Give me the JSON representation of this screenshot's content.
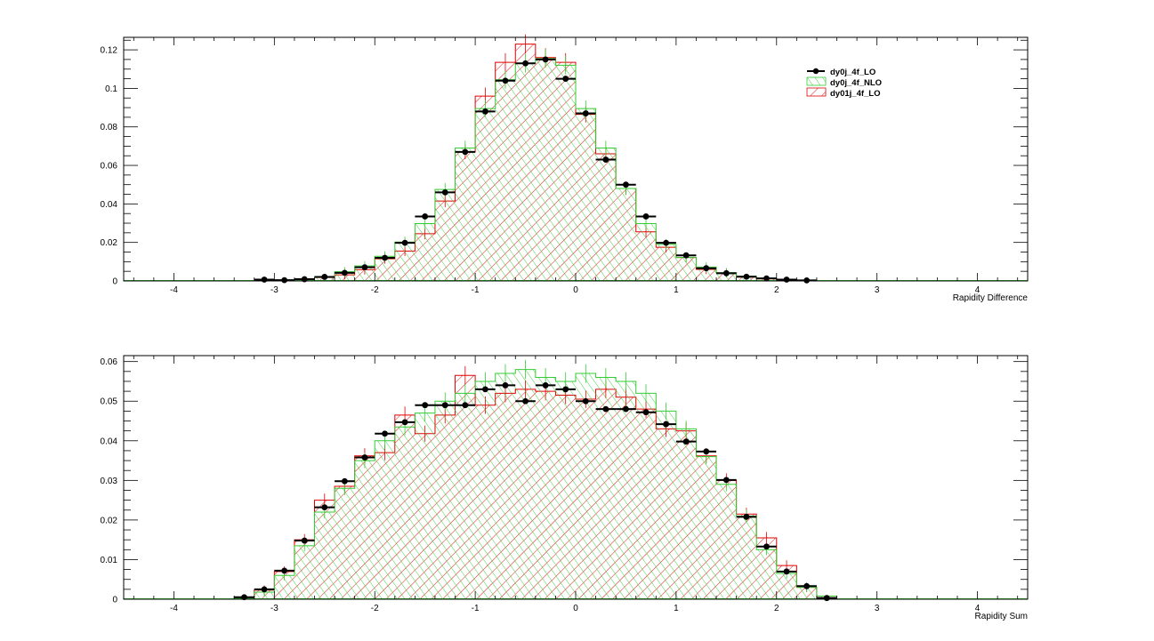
{
  "colors": {
    "lo": "#000000",
    "nlo": "#33cc33",
    "lo01j": "#e00000",
    "frame": "#000000",
    "background": "#ffffff"
  },
  "legend": {
    "placement": "top-right",
    "entries": [
      {
        "label": "dy0j_4f_LO",
        "series": "lo",
        "style": "marker"
      },
      {
        "label": "dy0j_4f_NLO",
        "series": "nlo",
        "style": "hatch-green"
      },
      {
        "label": "dy01j_4f_LO",
        "series": "lo01j",
        "style": "hatch-red"
      }
    ]
  },
  "chart_data": [
    {
      "type": "bar",
      "subtype": "histogram",
      "xlabel": "Rapidity Difference",
      "xlim": [
        -4.5,
        4.5
      ],
      "ylim": [
        0,
        0.1265
      ],
      "x_ticks": [
        "-4",
        "-3",
        "-2",
        "-1",
        "0",
        "1",
        "2",
        "3",
        "4"
      ],
      "y_ticks": [
        "0",
        "0.02",
        "0.04",
        "0.06",
        "0.08",
        "0.1",
        "0.12"
      ],
      "bin_edges": [
        -3.2,
        -3.0,
        -2.8,
        -2.6,
        -2.4,
        -2.2,
        -2.0,
        -1.8,
        -1.6,
        -1.4,
        -1.2,
        -1.0,
        -0.8,
        -0.6,
        -0.4,
        -0.2,
        0.0,
        0.2,
        0.4,
        0.6,
        0.8,
        1.0,
        1.2,
        1.4,
        1.6,
        1.8,
        2.0,
        2.2,
        2.4,
        2.6,
        2.8,
        3.0,
        3.2
      ],
      "series": [
        {
          "name": "dy0j_4f_LO",
          "key": "lo",
          "values": [
            0.0007,
            0.0004,
            0.0009,
            0.0021,
            0.0042,
            0.0071,
            0.012,
            0.0198,
            0.0335,
            0.046,
            0.067,
            0.088,
            0.104,
            0.113,
            0.115,
            0.105,
            0.087,
            0.063,
            0.05,
            0.0335,
            0.0198,
            0.0133,
            0.0066,
            0.004,
            0.0022,
            0.0013,
            0.0007,
            0.0003,
            0,
            0,
            0,
            0
          ]
        },
        {
          "name": "dy0j_4f_NLO",
          "key": "nlo",
          "values": [
            0.0003,
            0.0005,
            0.001,
            0.0022,
            0.0048,
            0.0078,
            0.0128,
            0.0202,
            0.0298,
            0.0475,
            0.069,
            0.0895,
            0.1045,
            0.113,
            0.1155,
            0.112,
            0.0895,
            0.069,
            0.048,
            0.0298,
            0.019,
            0.0122,
            0.0072,
            0.0043,
            0.0025,
            0.0013,
            0.0008,
            0.0004,
            0.0001,
            0,
            0,
            0
          ]
        },
        {
          "name": "dy01j_4f_LO",
          "key": "lo01j",
          "values": [
            0.0004,
            0.0003,
            0.0007,
            0.0018,
            0.0032,
            0.0058,
            0.0115,
            0.0155,
            0.0245,
            0.0415,
            0.067,
            0.096,
            0.1135,
            0.123,
            0.116,
            0.1135,
            0.0865,
            0.066,
            0.048,
            0.0255,
            0.0175,
            0.0122,
            0.006,
            0.0042,
            0.002,
            0.0011,
            0.0005,
            0.0003,
            0.0001,
            0,
            0,
            0
          ]
        }
      ]
    },
    {
      "type": "bar",
      "subtype": "histogram",
      "xlabel": "Rapidity Sum",
      "xlim": [
        -4.5,
        4.5
      ],
      "ylim": [
        0,
        0.0615
      ],
      "x_ticks": [
        "-4",
        "-3",
        "-2",
        "-1",
        "0",
        "1",
        "2",
        "3",
        "4"
      ],
      "y_ticks": [
        "0",
        "0.01",
        "0.02",
        "0.03",
        "0.04",
        "0.05",
        "0.06"
      ],
      "bin_edges": [
        -3.4,
        -3.2,
        -3.0,
        -2.8,
        -2.6,
        -2.4,
        -2.2,
        -2.0,
        -1.8,
        -1.6,
        -1.4,
        -1.2,
        -1.0,
        -0.8,
        -0.6,
        -0.4,
        -0.2,
        0.0,
        0.2,
        0.4,
        0.6,
        0.8,
        1.0,
        1.2,
        1.4,
        1.6,
        1.8,
        2.0,
        2.2,
        2.4,
        2.6,
        2.8,
        3.0,
        3.2,
        3.4
      ],
      "series": [
        {
          "name": "dy0j_4f_LO",
          "key": "lo",
          "values": [
            0.0005,
            0.0025,
            0.0072,
            0.0148,
            0.0232,
            0.0298,
            0.0358,
            0.0418,
            0.0447,
            0.049,
            0.049,
            0.049,
            0.053,
            0.054,
            0.05,
            0.054,
            0.053,
            0.05,
            0.048,
            0.048,
            0.0472,
            0.0442,
            0.0398,
            0.0373,
            0.0301,
            0.0208,
            0.0133,
            0.007,
            0.0033,
            0.0003,
            0,
            0,
            0,
            0
          ]
        },
        {
          "name": "dy0j_4f_NLO",
          "key": "nlo",
          "values": [
            0.0003,
            0.0018,
            0.006,
            0.0135,
            0.022,
            0.028,
            0.035,
            0.04,
            0.0435,
            0.047,
            0.05,
            0.052,
            0.055,
            0.057,
            0.058,
            0.056,
            0.055,
            0.057,
            0.056,
            0.055,
            0.052,
            0.0475,
            0.043,
            0.036,
            0.029,
            0.021,
            0.0125,
            0.0065,
            0.003,
            0.0008,
            0,
            0,
            0,
            0
          ]
        },
        {
          "name": "dy01j_4f_LO",
          "key": "lo01j",
          "values": [
            0.0005,
            0.0023,
            0.007,
            0.015,
            0.025,
            0.0285,
            0.0362,
            0.037,
            0.0465,
            0.0418,
            0.0465,
            0.0565,
            0.049,
            0.052,
            0.053,
            0.0525,
            0.0515,
            0.0505,
            0.053,
            0.051,
            0.048,
            0.043,
            0.0425,
            0.0362,
            0.03,
            0.0215,
            0.0155,
            0.0085,
            0.003,
            0.0004,
            0,
            0,
            0,
            0
          ]
        }
      ]
    }
  ]
}
